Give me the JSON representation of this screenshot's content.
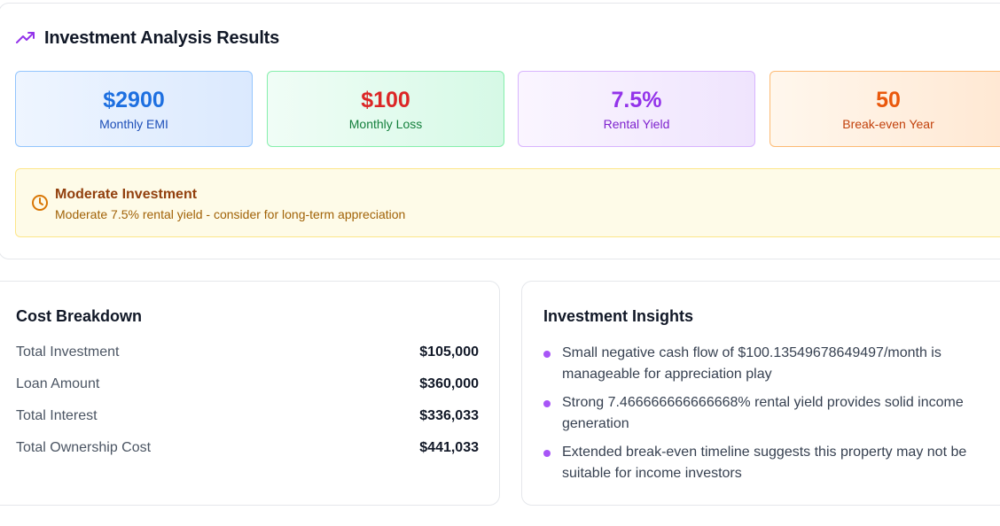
{
  "results": {
    "title": "Investment Analysis Results",
    "metrics": [
      {
        "value": "$2900",
        "label": "Monthly EMI"
      },
      {
        "value": "$100",
        "label": "Monthly Loss"
      },
      {
        "value": "7.5%",
        "label": "Rental Yield"
      },
      {
        "value": "50",
        "label": "Break-even Year"
      }
    ],
    "alert": {
      "title": "Moderate Investment",
      "message": "Moderate 7.5% rental yield - consider for long-term appreciation",
      "icon": "clock-icon"
    },
    "header_icon": "trending-up-icon"
  },
  "cost_breakdown": {
    "title": "Cost Breakdown",
    "rows": [
      {
        "label": "Total Investment",
        "value": "$105,000"
      },
      {
        "label": "Loan Amount",
        "value": "$360,000"
      },
      {
        "label": "Total Interest",
        "value": "$336,033"
      },
      {
        "label": "Total Ownership Cost",
        "value": "$441,033"
      }
    ]
  },
  "insights": {
    "title": "Investment Insights",
    "items": [
      "Small negative cash flow of $100.13549678649497/month is manageable for appreciation play",
      "Strong 7.466666666666668% rental yield provides solid income generation",
      "Extended break-even timeline suggests this property may not be suitable for income investors"
    ]
  },
  "colors": {
    "accent_purple": "#a855f7",
    "emi_blue": "#1d6fe0",
    "loss_red": "#dc2626",
    "yield_purple": "#9333ea",
    "breakeven_orange": "#ea580c",
    "alert_brown": "#92400e"
  }
}
